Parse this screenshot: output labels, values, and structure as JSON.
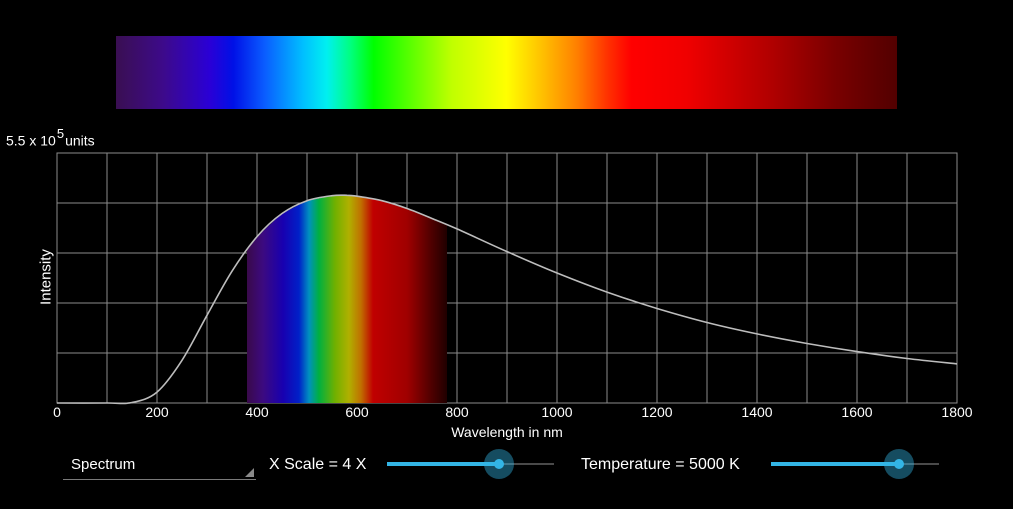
{
  "chart_data": {
    "type": "line",
    "y_scale_mantissa": "5.5 x 10",
    "y_scale_exponent": "5",
    "y_scale_unit": "units",
    "ylabel": "Intensity",
    "xlabel": "Wavelength in nm",
    "xlim": [
      0,
      1800
    ],
    "x_ticks": [
      0,
      200,
      400,
      600,
      800,
      1000,
      1200,
      1400,
      1600,
      1800
    ],
    "ylim": [
      0,
      5.5
    ],
    "grid": true,
    "visible_band_nm": [
      380,
      780
    ],
    "series": [
      {
        "x": [
          0,
          100,
          150,
          200,
          250,
          300,
          350,
          400,
          450,
          500,
          550,
          580,
          600,
          650,
          700,
          750,
          800,
          900,
          1000,
          1100,
          1200,
          1300,
          1400,
          1500,
          1600,
          1700,
          1800
        ],
        "values": [
          0,
          0,
          0.01,
          0.24,
          0.94,
          1.93,
          2.9,
          3.66,
          4.17,
          4.45,
          4.56,
          4.57,
          4.55,
          4.45,
          4.28,
          4.06,
          3.83,
          3.33,
          2.86,
          2.44,
          2.08,
          1.77,
          1.52,
          1.31,
          1.13,
          0.98,
          0.86
        ]
      }
    ]
  },
  "spectrum_dropdown": {
    "selected": "Spectrum"
  },
  "x_scale_slider": {
    "label": "X Scale = 4 X",
    "value_fraction": 0.67
  },
  "temperature_slider": {
    "label": "Temperature = 5000 K",
    "value_fraction": 0.76
  },
  "colors": {
    "accent": "#33b5e5",
    "curve": "#bdbdbd",
    "grid": "#8c8c8c"
  }
}
